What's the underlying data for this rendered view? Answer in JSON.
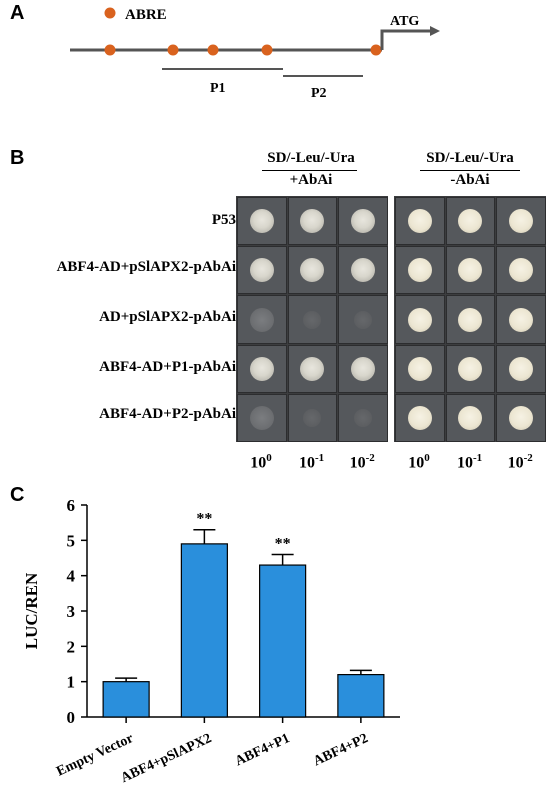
{
  "panel_a": {
    "letter": "A",
    "legend_label": "ABRE",
    "atg_label": "ATG",
    "p1_label": "P1",
    "p2_label": "P2",
    "colors": {
      "abre": "#d9621e",
      "line": "#555555"
    }
  },
  "panel_b": {
    "letter": "B",
    "left_header_line1": "SD/-Leu/-Ura",
    "left_header_line2": "+AbAi",
    "right_header_line1": "SD/-Leu/-Ura",
    "right_header_line2": "-AbAi",
    "rows": [
      {
        "label": "P53"
      },
      {
        "label": "ABF4-AD+pSlAPX2-pAbAi"
      },
      {
        "label": "AD+pSlAPX2-pAbAi"
      },
      {
        "label": "ABF4-AD+P1-pAbAi"
      },
      {
        "label": "ABF4-AD+P2-pAbAi"
      }
    ],
    "dilutions": [
      {
        "base": "10",
        "exp": "0"
      },
      {
        "base": "10",
        "exp": "-1"
      },
      {
        "base": "10",
        "exp": "-2"
      }
    ],
    "growth_plus_abai": [
      [
        "grow",
        "grow",
        "grow"
      ],
      [
        "grow",
        "grow",
        "grow"
      ],
      [
        "faint",
        "trace",
        "trace"
      ],
      [
        "grow",
        "grow",
        "grow"
      ],
      [
        "faint",
        "trace",
        "trace"
      ]
    ],
    "growth_minus_abai": [
      [
        "bright",
        "bright",
        "bright"
      ],
      [
        "bright",
        "bright",
        "bright"
      ],
      [
        "bright",
        "bright",
        "bright"
      ],
      [
        "bright",
        "bright",
        "bright"
      ],
      [
        "bright",
        "bright",
        "bright"
      ]
    ]
  },
  "chart_data": {
    "panel_letter": "C",
    "type": "bar",
    "categories": [
      "Empty Vector",
      "ABF4+pSlAPX2",
      "ABF4+P1",
      "ABF4+P2"
    ],
    "values": [
      1.0,
      4.9,
      4.3,
      1.2
    ],
    "errors": [
      0.1,
      0.4,
      0.3,
      0.12
    ],
    "annotations": [
      "",
      "**",
      "**",
      ""
    ],
    "ylabel": "LUC/REN",
    "xlabel": "",
    "ylim": [
      0,
      6
    ],
    "yticks": [
      "0",
      "1",
      "2",
      "3",
      "4",
      "5",
      "6"
    ],
    "bar_color": "#2a8fdc",
    "grid": false
  }
}
